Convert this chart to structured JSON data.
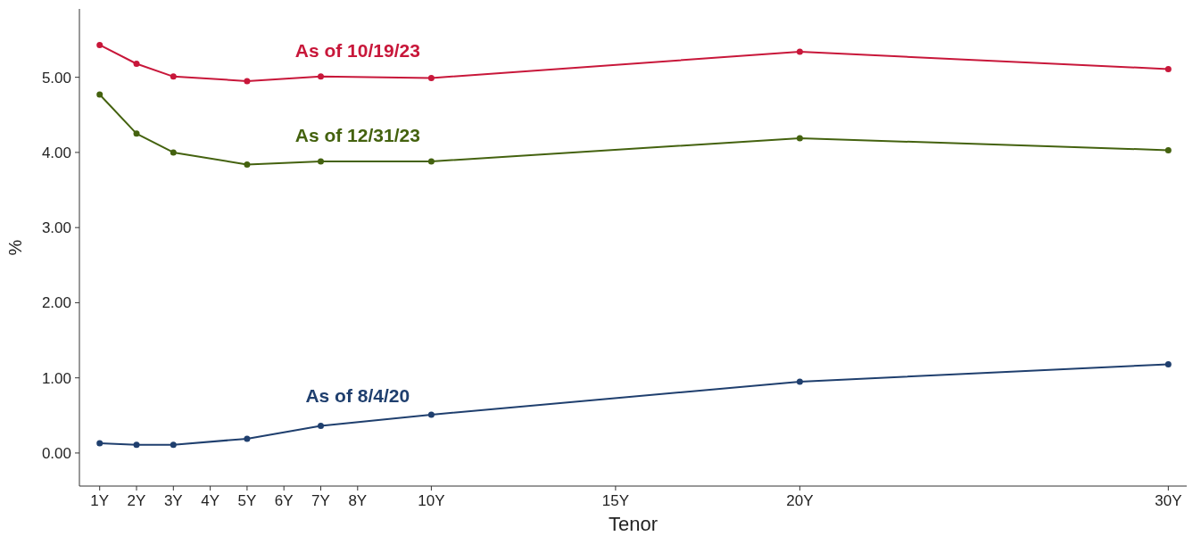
{
  "chart_data": {
    "type": "line",
    "xlabel": "Tenor",
    "ylabel": "%",
    "marker": "circle",
    "grid": false,
    "xlim": [
      0.45,
      30.5
    ],
    "ylim": [
      -0.44,
      5.91
    ],
    "xticks": [
      {
        "value": 1,
        "label": "1Y"
      },
      {
        "value": 2,
        "label": "2Y"
      },
      {
        "value": 3,
        "label": "3Y"
      },
      {
        "value": 4,
        "label": "4Y"
      },
      {
        "value": 5,
        "label": "5Y"
      },
      {
        "value": 6,
        "label": "6Y"
      },
      {
        "value": 7,
        "label": "7Y"
      },
      {
        "value": 8,
        "label": "8Y"
      },
      {
        "value": 10,
        "label": "10Y"
      },
      {
        "value": 15,
        "label": "15Y"
      },
      {
        "value": 20,
        "label": "20Y"
      },
      {
        "value": 30,
        "label": "30Y"
      }
    ],
    "yticks": [
      {
        "value": 0,
        "label": "0.00"
      },
      {
        "value": 1,
        "label": "1.00"
      },
      {
        "value": 2,
        "label": "2.00"
      },
      {
        "value": 3,
        "label": "3.00"
      },
      {
        "value": 4,
        "label": "4.00"
      },
      {
        "value": 5,
        "label": "5.00"
      }
    ],
    "x": [
      1,
      2,
      3,
      5,
      7,
      10,
      20,
      30
    ],
    "series": [
      {
        "name": "As of 10/19/23",
        "color": "#c8173a",
        "values": [
          5.43,
          5.18,
          5.01,
          4.95,
          5.01,
          4.99,
          5.34,
          5.11
        ]
      },
      {
        "name": "As of 12/31/23",
        "color": "#44620f",
        "values": [
          4.77,
          4.25,
          4.0,
          3.84,
          3.88,
          3.88,
          4.19,
          4.03
        ]
      },
      {
        "name": "As of 8/4/20",
        "color": "#1f3f6e",
        "values": [
          0.13,
          0.11,
          0.11,
          0.19,
          0.36,
          0.51,
          0.95,
          1.18
        ]
      }
    ]
  }
}
